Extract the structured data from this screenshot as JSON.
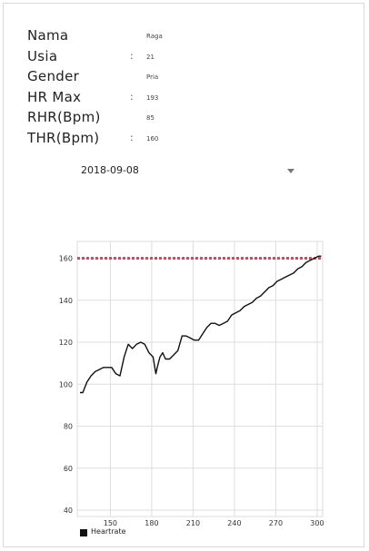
{
  "profile": {
    "fields": [
      {
        "label": "Nama",
        "colon": "",
        "value": "Raga"
      },
      {
        "label": "Usia",
        "colon": ":",
        "value": "21"
      },
      {
        "label": "Gender",
        "colon": "",
        "value": "Pria"
      },
      {
        "label": "HR Max",
        "colon": ":",
        "value": "193"
      },
      {
        "label": "RHR(Bpm)",
        "colon": "",
        "value": "85"
      },
      {
        "label": "THR(Bpm)",
        "colon": ":",
        "value": "160"
      }
    ]
  },
  "date_selector": {
    "value": "2018-09-08",
    "icon": "chevron-down-icon"
  },
  "colors": {
    "heartrate_line": "#111111",
    "threshold_line": "#d9475c",
    "grid": "#dddddd"
  },
  "chart_data": {
    "type": "line",
    "x": [
      128,
      130,
      133,
      136,
      139,
      142,
      145,
      148,
      151,
      154,
      157,
      160,
      163,
      166,
      169,
      172,
      175,
      178,
      181,
      183,
      184,
      186,
      188,
      190,
      193,
      196,
      199,
      202,
      205,
      208,
      211,
      214,
      217,
      220,
      223,
      226,
      229,
      232,
      235,
      238,
      241,
      244,
      247,
      250,
      253,
      256,
      259,
      262,
      265,
      268,
      271,
      274,
      277,
      280,
      283,
      286,
      289,
      292,
      295,
      298,
      301,
      303
    ],
    "series": [
      {
        "name": "Heartrate",
        "values": [
          96,
          96,
          101,
          104,
          106,
          107,
          108,
          108,
          108,
          105,
          104,
          113,
          119,
          117,
          119,
          120,
          119,
          115,
          113,
          105,
          108,
          113,
          115,
          112,
          112,
          114,
          116,
          123,
          123,
          122,
          121,
          121,
          124,
          127,
          129,
          129,
          128,
          129,
          130,
          133,
          134,
          135,
          137,
          138,
          139,
          141,
          142,
          144,
          146,
          147,
          149,
          150,
          151,
          152,
          153,
          155,
          156,
          158,
          159,
          160,
          161,
          161
        ]
      }
    ],
    "threshold": 160,
    "xticks": [
      150,
      180,
      210,
      240,
      270,
      300
    ],
    "yticks": [
      40,
      60,
      80,
      100,
      120,
      140,
      160
    ],
    "xlim": [
      126,
      304
    ],
    "ylim": [
      37,
      168
    ],
    "grid": true,
    "legend_position": "bottom-left"
  }
}
